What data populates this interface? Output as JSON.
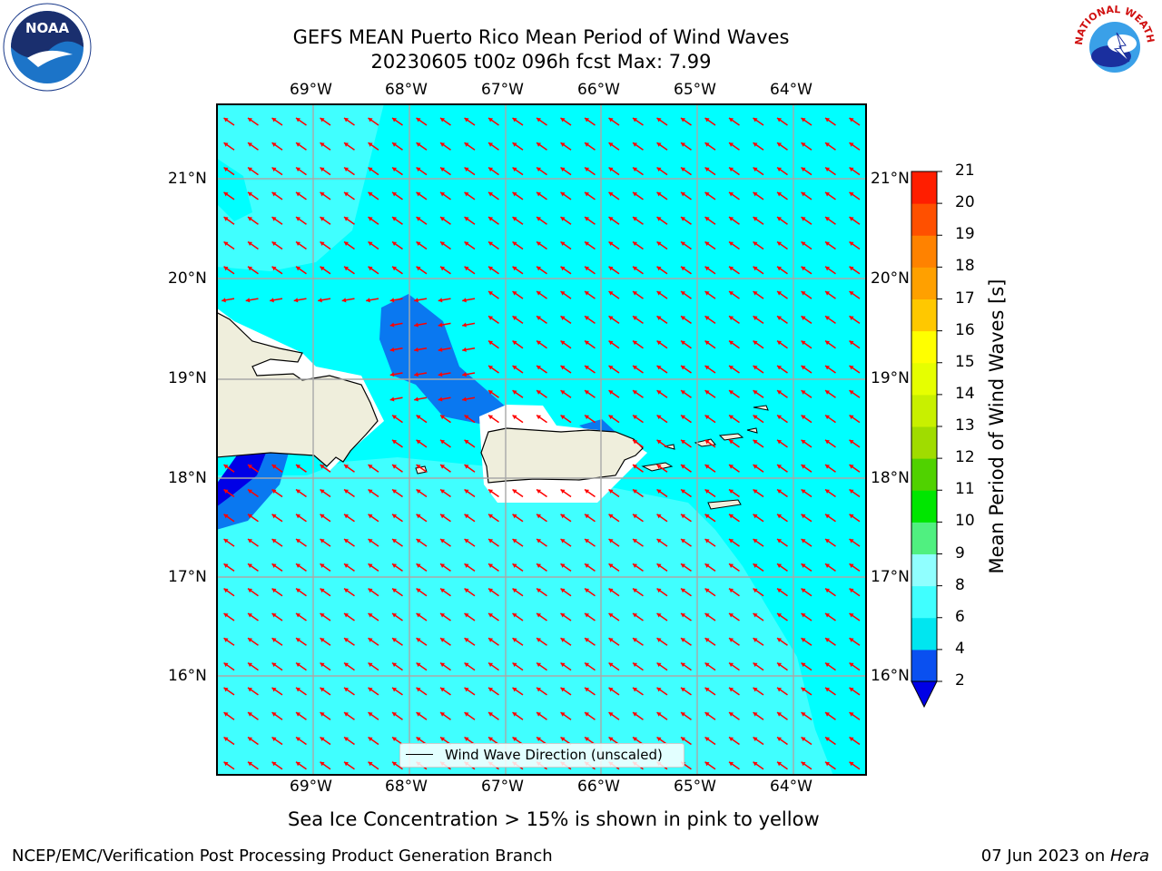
{
  "title": {
    "line1": "GEFS MEAN Puerto Rico Mean Period of Wind Waves",
    "line2": "20230605 t00z 096h fcst   Max: 7.99"
  },
  "axes": {
    "lon_labels": [
      "69°W",
      "68°W",
      "67°W",
      "66°W",
      "65°W",
      "64°W"
    ],
    "lat_labels": [
      "21°N",
      "20°N",
      "19°N",
      "18°N",
      "17°N",
      "16°N"
    ]
  },
  "colorbar": {
    "label": "Mean Period of Wind Waves [s]",
    "ticks": [
      "2",
      "4",
      "6",
      "8",
      "9",
      "10",
      "11",
      "12",
      "13",
      "14",
      "15",
      "16",
      "17",
      "18",
      "19",
      "20",
      "21"
    ],
    "colors": [
      "#0a50f0",
      "#00e6f0",
      "#40ffff",
      "#90ffff",
      "#50f080",
      "#00e600",
      "#50d200",
      "#a0dc00",
      "#c8f000",
      "#e6ff00",
      "#ffff00",
      "#ffc800",
      "#ffa000",
      "#ff8200",
      "#ff5000",
      "#ff1e00"
    ],
    "under_color": "#0000e6"
  },
  "legend": {
    "label": "Wind Wave Direction (unscaled)"
  },
  "logos": {
    "noaa": "NOAA",
    "nws": "NATIONAL WEATHER SERVICE"
  },
  "footer": {
    "note": "Sea Ice Concentration > 15% is shown in pink to yellow",
    "left": "NCEP/EMC/Verification Post Processing Product Generation Branch",
    "date": "07 Jun 2023 on ",
    "machine": "Hera"
  },
  "colors": {
    "arrow": "#ff0000",
    "land": "#efeedc",
    "sea_cyan": "#00ffff",
    "sea_light": "#40ffff"
  }
}
